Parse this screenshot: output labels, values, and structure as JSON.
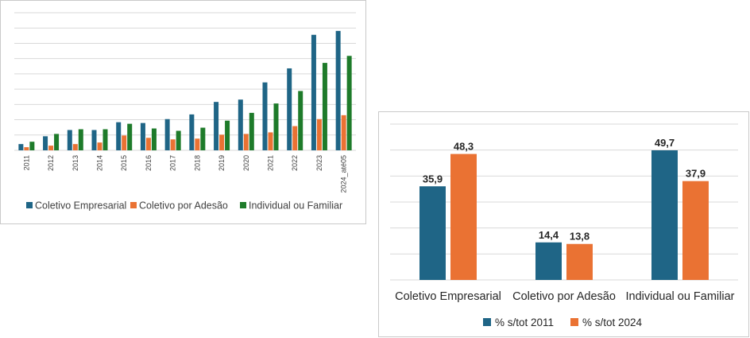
{
  "colors": {
    "series1": "#1f6586",
    "series2": "#ea7233",
    "series3": "#1e7b2a",
    "grid": "#d9d9d9"
  },
  "chart_data": [
    {
      "type": "bar",
      "title": "",
      "xlabel": "",
      "ylabel": "",
      "grid": true,
      "legend_position": "bottom",
      "categories": [
        "2011",
        "2012",
        "2013",
        "2014",
        "2015",
        "2016",
        "2017",
        "2018",
        "2019",
        "2020",
        "2021",
        "2022",
        "2023",
        "2024_até05"
      ],
      "ylim": [
        0,
        8
      ],
      "series": [
        {
          "name": "Coletivo Empresarial",
          "color": "#1f6586",
          "values": [
            0.4,
            0.9,
            1.3,
            1.3,
            1.8,
            1.75,
            2.0,
            2.3,
            3.1,
            3.25,
            4.35,
            5.25,
            7.4,
            7.65
          ]
        },
        {
          "name": "Coletivo por Adesão",
          "color": "#ea7233",
          "values": [
            0.2,
            0.3,
            0.4,
            0.5,
            0.95,
            0.8,
            0.7,
            0.75,
            1.0,
            1.05,
            1.15,
            1.55,
            2.0,
            2.25
          ]
        },
        {
          "name": "Individual ou Familiar",
          "color": "#1e7b2a",
          "values": [
            0.55,
            1.05,
            1.35,
            1.35,
            1.7,
            1.4,
            1.25,
            1.45,
            1.9,
            2.4,
            3.0,
            3.8,
            5.6,
            6.05
          ]
        }
      ]
    },
    {
      "type": "bar",
      "title": "",
      "xlabel": "",
      "ylabel": "",
      "grid": true,
      "legend_position": "bottom",
      "categories": [
        "Coletivo Empresarial",
        "Coletivo por Adesão",
        "Individual ou Familiar"
      ],
      "ylim": [
        0,
        50
      ],
      "series": [
        {
          "name": "% s/tot 2011",
          "color": "#1f6586",
          "values": [
            35.9,
            14.4,
            49.7
          ],
          "labels": [
            "35,9",
            "14,4",
            "49,7"
          ]
        },
        {
          "name": "% s/tot 2024",
          "color": "#ea7233",
          "values": [
            48.3,
            13.8,
            37.9
          ],
          "labels": [
            "48,3",
            "13,8",
            "37,9"
          ]
        }
      ]
    }
  ]
}
